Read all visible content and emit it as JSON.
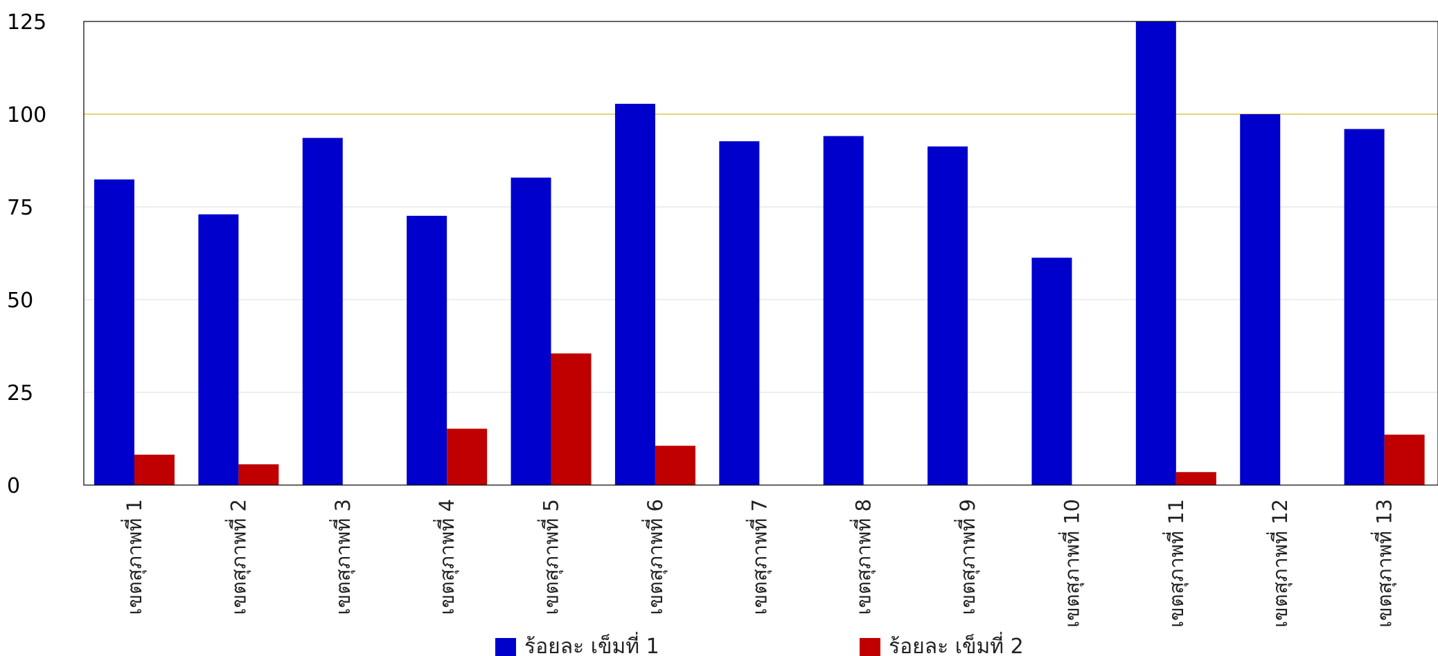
{
  "chart_data": {
    "type": "bar",
    "title": "",
    "xlabel": "",
    "ylabel": "",
    "ylim": [
      0,
      125
    ],
    "yticks": [
      0,
      25,
      50,
      75,
      100,
      125
    ],
    "grid": true,
    "reference_line": {
      "value": 100,
      "color": "#d9c94a"
    },
    "legend": {
      "position": "bottom"
    },
    "categories": [
      "เขตสุภาพที่ 1",
      "เขตสุภาพที่ 2",
      "เขตสุภาพที่ 3",
      "เขตสุภาพที่ 4",
      "เขตสุภาพที่ 5",
      "เขตสุภาพที่ 6",
      "เขตสุภาพที่ 7",
      "เขตสุภาพที่ 8",
      "เขตสุภาพที่ 9",
      "เขตสุภาพที่ 10",
      "เขตสุภาพที่ 11",
      "เขตสุภาพที่ 12",
      "เขตสุภาพที่ 13"
    ],
    "series": [
      {
        "name": "ร้อยละ เข็มที่ 1",
        "color": "#0000cc",
        "values": [
          82.4,
          73.0,
          93.6,
          72.6,
          82.9,
          102.8,
          92.7,
          94.1,
          91.3,
          61.3,
          125,
          100,
          96.0
        ]
      },
      {
        "name": "ร้อยละ เข็มที่ 2",
        "color": "#c00000",
        "values": [
          8.2,
          5.6,
          0,
          15.2,
          35.5,
          10.6,
          0,
          0,
          0,
          0,
          3.5,
          0,
          13.6
        ]
      }
    ]
  }
}
